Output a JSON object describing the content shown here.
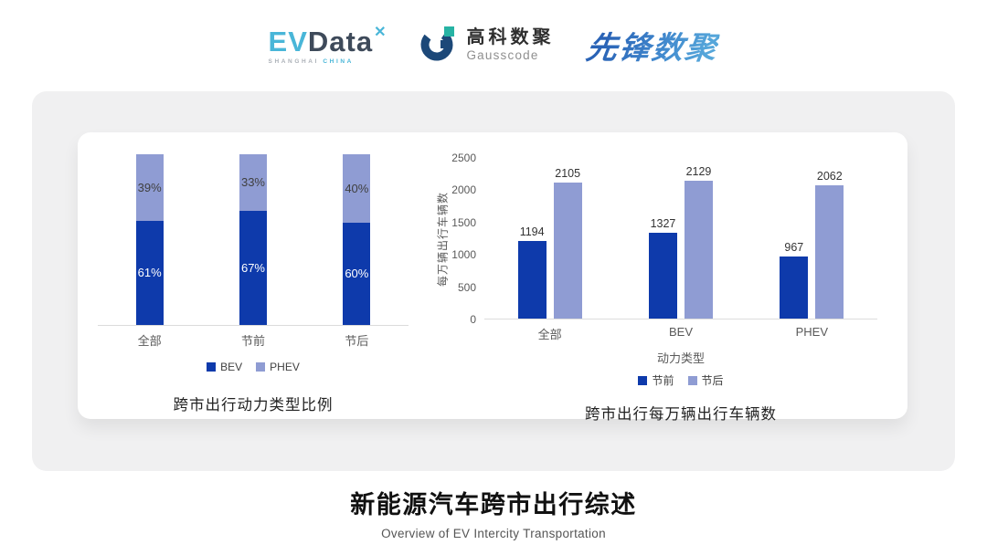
{
  "header": {
    "evdata": {
      "ev": "EV",
      "data": "Data",
      "mark": "✕",
      "sub_left": "SHANGHAI",
      "sub_right": "CHINA"
    },
    "gausscode": {
      "cn": "高科数聚",
      "en": "Gausscode"
    },
    "xianfeng": {
      "text": "先锋数聚"
    }
  },
  "colors": {
    "dark_blue": "#0e3aab",
    "light_blue": "#8f9cd3",
    "evdata_cyan": "#49b6d8",
    "evdata_slate": "#3e4a5a",
    "gauss_navy": "#1c4878",
    "gauss_teal": "#27b3a4",
    "axis_line": "#dcdcdc",
    "axis_text": "#595959",
    "card_bg": "#f0f0f1"
  },
  "chart_data": [
    {
      "type": "bar",
      "variant": "stacked-percent",
      "title": "跨市出行动力类型比例",
      "categories": [
        "全部",
        "节前",
        "节后"
      ],
      "series": [
        {
          "name": "BEV",
          "color_key": "dark_blue",
          "values": [
            61,
            67,
            60
          ]
        },
        {
          "name": "PHEV",
          "color_key": "light_blue",
          "values": [
            39,
            33,
            40
          ]
        }
      ],
      "value_suffix": "%",
      "ylim": [
        0,
        100
      ],
      "grid": false,
      "legend_position": "bottom"
    },
    {
      "type": "bar",
      "variant": "grouped",
      "title": "跨市出行每万辆出行车辆数",
      "categories": [
        "全部",
        "BEV",
        "PHEV"
      ],
      "series": [
        {
          "name": "节前",
          "color_key": "dark_blue",
          "values": [
            1194,
            1327,
            967
          ]
        },
        {
          "name": "节后",
          "color_key": "light_blue",
          "values": [
            2105,
            2129,
            2062
          ]
        }
      ],
      "xlabel": "动力类型",
      "ylabel": "每万辆出行车辆数",
      "ylim": [
        0,
        2500
      ],
      "yticks": [
        0,
        500,
        1000,
        1500,
        2000,
        2500
      ],
      "grid": false,
      "legend_position": "bottom"
    }
  ],
  "footer": {
    "title": "新能源汽车跨市出行综述",
    "subtitle": "Overview of EV Intercity Transportation"
  }
}
